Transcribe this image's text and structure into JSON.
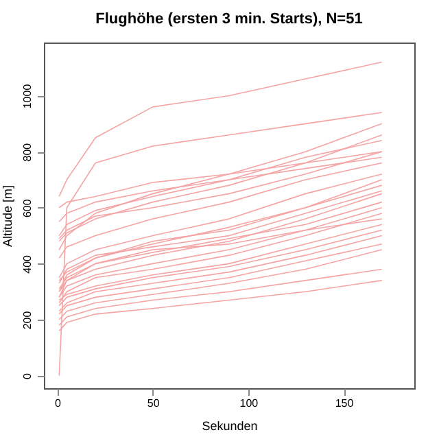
{
  "chart_data": {
    "type": "line",
    "title": "Flughöhe (ersten 3 min. Starts), N=51",
    "xlabel": "Sekunden",
    "ylabel": "Altitude [m]",
    "x": [
      1,
      5,
      20,
      50,
      90,
      130,
      170
    ],
    "xlim": [
      -7,
      187
    ],
    "xticks": [
      0,
      50,
      100,
      150
    ],
    "ylim": [
      -45,
      1190
    ],
    "yticks": [
      0,
      200,
      400,
      600,
      800,
      1000
    ],
    "grid": false,
    "legend": false,
    "series": [
      {
        "color": "#f5a3a3",
        "values": [
          640,
          700,
          850,
          960,
          1000,
          1060,
          1120
        ]
      },
      {
        "color": "#f5a3a3",
        "values": [
          0,
          600,
          760,
          820,
          860,
          900,
          940
        ]
      },
      {
        "color": "#f5a3a3",
        "values": [
          480,
          510,
          560,
          620,
          680,
          760,
          860
        ]
      },
      {
        "color": "#f5a3a3",
        "values": [
          500,
          540,
          590,
          640,
          700,
          780,
          840
        ]
      },
      {
        "color": "#f5a3a3",
        "values": [
          490,
          520,
          570,
          600,
          650,
          720,
          800
        ]
      },
      {
        "color": "#f5a3a3",
        "values": [
          550,
          580,
          620,
          660,
          700,
          740,
          780
        ]
      },
      {
        "color": "#f5a3a3",
        "values": [
          600,
          620,
          640,
          690,
          720,
          760,
          800
        ]
      },
      {
        "color": "#f5a3a3",
        "values": [
          350,
          400,
          450,
          500,
          560,
          650,
          720
        ]
      },
      {
        "color": "#f5a3a3",
        "values": [
          340,
          370,
          420,
          470,
          530,
          600,
          680
        ]
      },
      {
        "color": "#f5a3a3",
        "values": [
          300,
          340,
          380,
          430,
          480,
          560,
          650
        ]
      },
      {
        "color": "#f5a3a3",
        "values": [
          280,
          320,
          360,
          400,
          450,
          520,
          600
        ]
      },
      {
        "color": "#f5a3a3",
        "values": [
          260,
          300,
          350,
          380,
          430,
          500,
          580
        ]
      },
      {
        "color": "#f5a3a3",
        "values": [
          270,
          290,
          320,
          360,
          400,
          470,
          540
        ]
      },
      {
        "color": "#f5a3a3",
        "values": [
          250,
          280,
          310,
          350,
          390,
          450,
          520
        ]
      },
      {
        "color": "#f5a3a3",
        "values": [
          230,
          260,
          300,
          330,
          370,
          430,
          500
        ]
      },
      {
        "color": "#f5a3a3",
        "values": [
          220,
          250,
          280,
          310,
          350,
          410,
          470
        ]
      },
      {
        "color": "#f5a3a3",
        "values": [
          200,
          230,
          260,
          290,
          330,
          380,
          450
        ]
      },
      {
        "color": "#f5a3a3",
        "values": [
          180,
          210,
          240,
          270,
          300,
          340,
          380
        ]
      },
      {
        "color": "#f5a3a3",
        "values": [
          160,
          190,
          220,
          240,
          270,
          300,
          340
        ]
      },
      {
        "color": "#f5a3a3",
        "values": [
          310,
          350,
          400,
          440,
          490,
          540,
          620
        ]
      },
      {
        "color": "#f5a3a3",
        "values": [
          330,
          380,
          430,
          460,
          500,
          580,
          660
        ]
      },
      {
        "color": "#f5a3a3",
        "values": [
          420,
          460,
          500,
          560,
          620,
          700,
          760
        ]
      },
      {
        "color": "#f5a3a3",
        "values": [
          300,
          360,
          420,
          480,
          520,
          600,
          700
        ]
      },
      {
        "color": "#f5a3a3",
        "values": [
          280,
          340,
          400,
          450,
          470,
          520,
          560
        ]
      },
      {
        "color": "#f5a3a3",
        "values": [
          450,
          500,
          580,
          650,
          720,
          800,
          900
        ]
      }
    ]
  }
}
